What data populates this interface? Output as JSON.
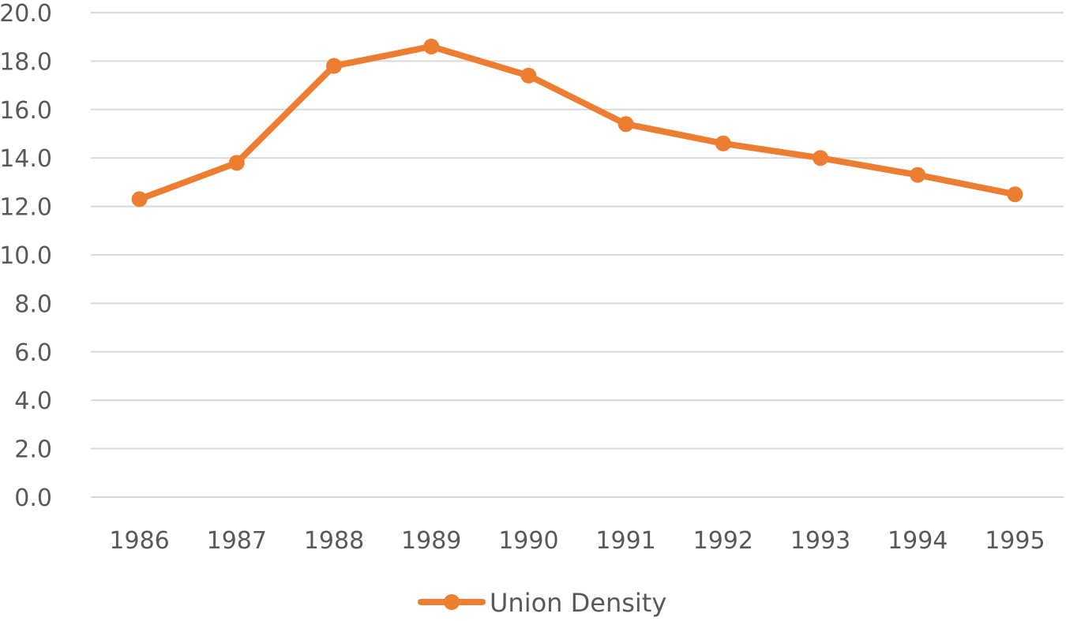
{
  "chart_data": {
    "type": "line",
    "title": "",
    "xlabel": "",
    "ylabel": "",
    "x": [
      "1986",
      "1987",
      "1988",
      "1989",
      "1990",
      "1991",
      "1992",
      "1993",
      "1994",
      "1995"
    ],
    "y_ticks": [
      "0.0",
      "2.0",
      "4.0",
      "6.0",
      "8.0",
      "10.0",
      "12.0",
      "14.0",
      "16.0",
      "18.0",
      "20.0"
    ],
    "ylim": [
      0,
      20
    ],
    "grid": true,
    "legend_position": "bottom",
    "series": [
      {
        "name": "Union Density",
        "color": "#ed7d31",
        "marker": "circle",
        "values": [
          12.3,
          13.8,
          17.8,
          18.6,
          17.4,
          15.4,
          14.6,
          14.0,
          13.3,
          12.5
        ]
      }
    ]
  }
}
